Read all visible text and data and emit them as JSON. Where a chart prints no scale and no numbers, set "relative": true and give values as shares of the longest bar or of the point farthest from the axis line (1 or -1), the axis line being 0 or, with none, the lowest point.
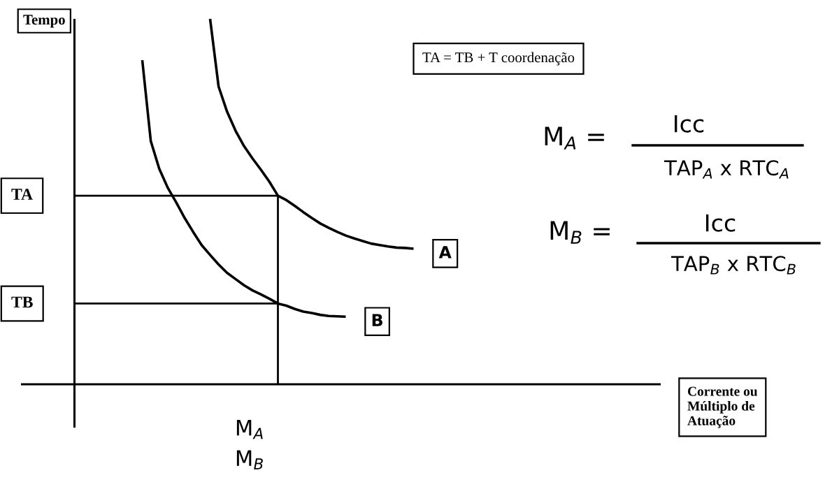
{
  "chart_data": {
    "type": "line",
    "relative": true,
    "ylabel": "Tempo",
    "categories": [
      null,
      null,
      null,
      null,
      null,
      null,
      null,
      null,
      null,
      null,
      null,
      null,
      null,
      null,
      null,
      null,
      null,
      null,
      null,
      null,
      null,
      null,
      null,
      null,
      null,
      null,
      null,
      null,
      null,
      null,
      null,
      null,
      null,
      null,
      null,
      null,
      null,
      null,
      null,
      null,
      null
    ],
    "series": [
      {
        "name": "A",
        "color": "#000000",
        "values": [
          null,
          null,
          null,
          null,
          null,
          null,
          null,
          null,
          null,
          null,
          null,
          null,
          null,
          null,
          null,
          null,
          1.0,
          0.815,
          0.746,
          0.694,
          0.652,
          0.618,
          0.587,
          0.554,
          0.516,
          0.504,
          0.488,
          0.471,
          0.455,
          0.44,
          0.428,
          0.417,
          0.407,
          0.399,
          0.392,
          0.385,
          0.381,
          0.377,
          0.374,
          0.373,
          0.371
        ]
      },
      {
        "name": "B",
        "color": "#000000",
        "values": [
          null,
          null,
          null,
          null,
          null,
          null,
          null,
          null,
          0.887,
          0.666,
          0.59,
          0.538,
          0.498,
          0.455,
          0.417,
          0.381,
          0.354,
          0.328,
          0.305,
          0.288,
          0.271,
          0.257,
          0.246,
          0.234,
          0.221,
          0.215,
          0.206,
          0.199,
          0.195,
          0.19,
          0.187,
          0.186,
          0.185,
          null,
          null,
          null,
          null,
          null,
          null,
          null,
          null
        ]
      }
    ],
    "ref_lines": [
      {
        "axis": "y",
        "value": 0.516,
        "label": "TA",
        "color": "#000000"
      },
      {
        "axis": "y",
        "value": 0.221,
        "label": "TB",
        "color": "#000000"
      }
    ],
    "annotations": [
      "TA = TB + T coordenação",
      "M$_{A}$ =",
      "Icc",
      "TAP$_{A}$ x RTC$_{A}$",
      "M$_{B}$ =",
      "Icc",
      "TAP$_{B}$ x RTC$_{B}$",
      "M$_{A}$\nM$_{B}$",
      "Corrente ou\nMúltiplo de\nAtuação"
    ]
  }
}
